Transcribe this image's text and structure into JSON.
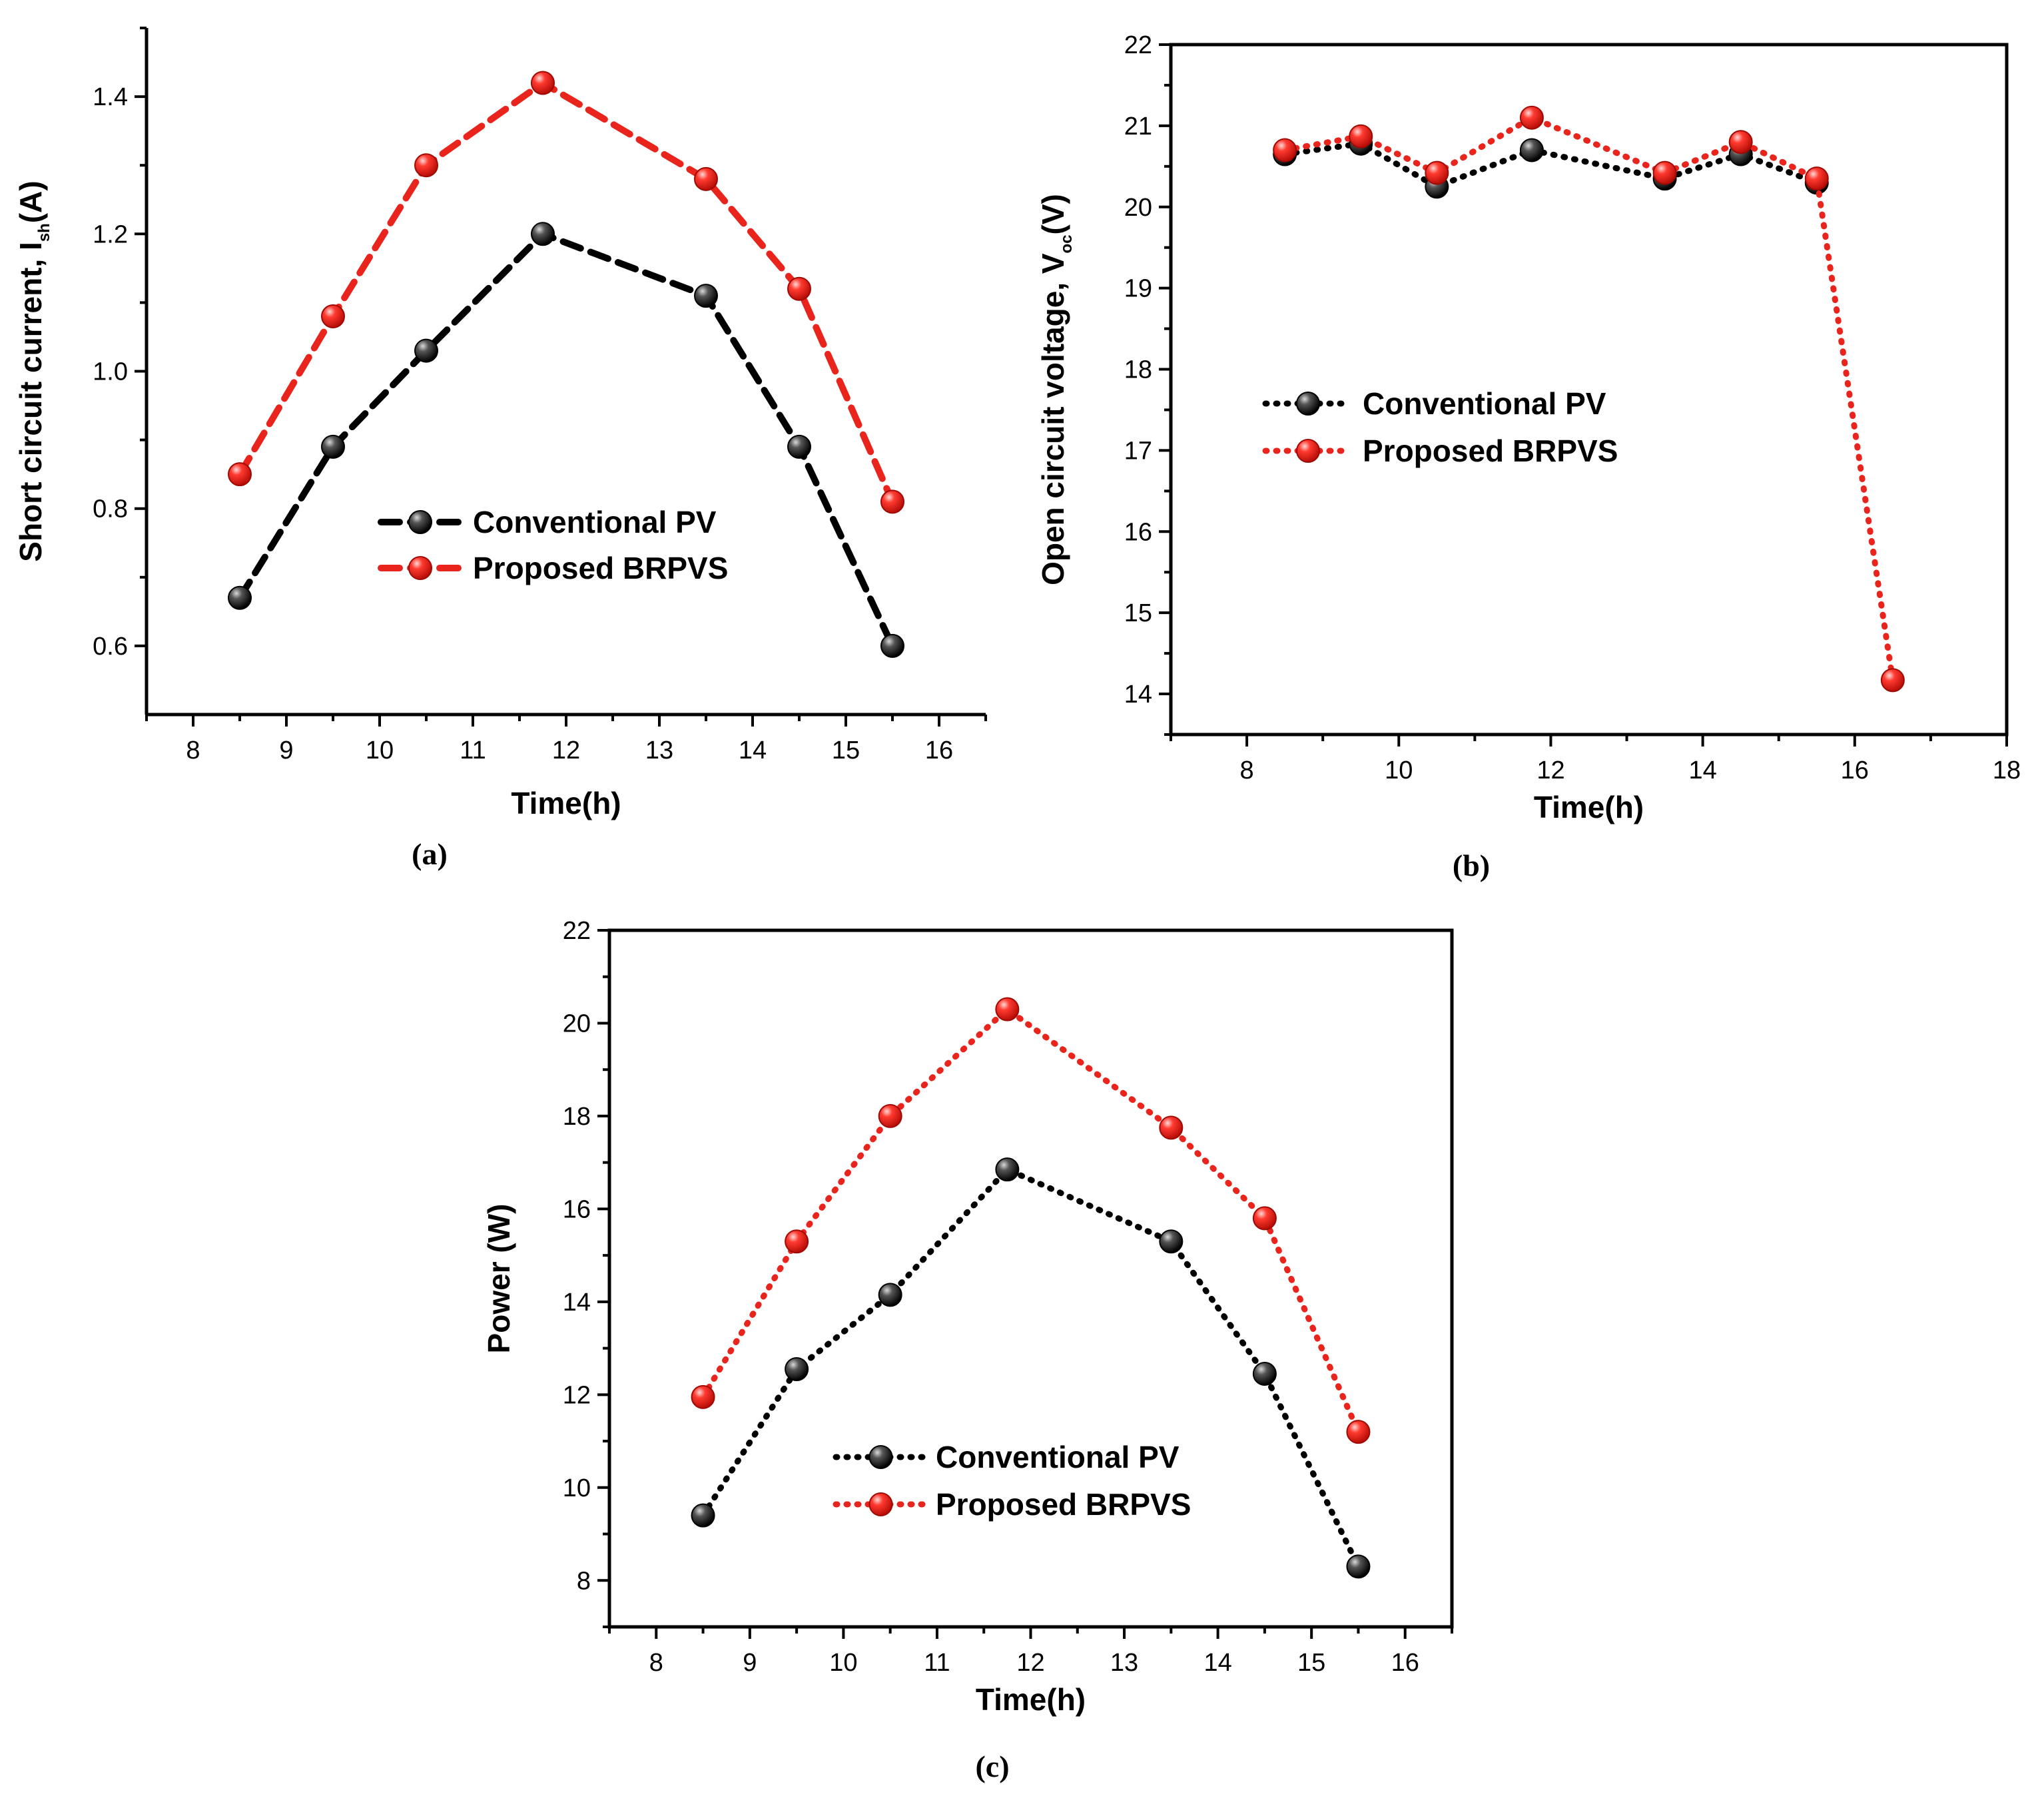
{
  "chart_data": [
    {
      "type": "line",
      "panel": "(a)",
      "title": "",
      "xlabel": "Time(h)",
      "ylabel": "Short circuit current, I",
      "ylabel_sub": "sh",
      "ylabel_unit": "(A)",
      "xlim": [
        7.5,
        16.5
      ],
      "ylim": [
        0.5,
        1.5
      ],
      "xticks": [
        8,
        9,
        10,
        11,
        12,
        13,
        14,
        15,
        16
      ],
      "yticks": [
        0.6,
        0.8,
        1.0,
        1.2,
        1.4
      ],
      "ytick_labels": [
        "0.6",
        "0.8",
        "1.0",
        "1.2",
        "1.4"
      ],
      "legend_position": "center",
      "series": [
        {
          "name": "Conventional PV",
          "color": "#000000",
          "dash": "dashed",
          "x": [
            8.5,
            9.5,
            10.5,
            11.75,
            13.5,
            14.5,
            15.5
          ],
          "y": [
            0.67,
            0.89,
            1.03,
            1.2,
            1.11,
            0.89,
            0.6
          ]
        },
        {
          "name": "Proposed BRPVS",
          "color": "#e8241c",
          "dash": "dashed",
          "x": [
            8.5,
            9.5,
            10.5,
            11.75,
            13.5,
            14.5,
            15.5
          ],
          "y": [
            0.85,
            1.08,
            1.3,
            1.42,
            1.28,
            1.12,
            0.81
          ]
        }
      ]
    },
    {
      "type": "line",
      "panel": "(b)",
      "title": "",
      "xlabel": "Time(h)",
      "ylabel": "Open circuit voltage, V",
      "ylabel_sub": "oc",
      "ylabel_unit": "(V)",
      "xlim": [
        7,
        18
      ],
      "ylim": [
        13.5,
        22
      ],
      "xticks": [
        8,
        10,
        12,
        14,
        16,
        18
      ],
      "yticks": [
        14,
        15,
        16,
        17,
        18,
        19,
        20,
        21,
        22
      ],
      "ytick_labels": [
        "14",
        "15",
        "16",
        "17",
        "18",
        "19",
        "20",
        "21",
        "22"
      ],
      "legend_position": "center-left",
      "series": [
        {
          "name": "Conventional PV",
          "color": "#000000",
          "dash": "dotted",
          "x": [
            8.5,
            9.5,
            10.5,
            11.75,
            13.5,
            14.5,
            15.5
          ],
          "y": [
            20.65,
            20.78,
            20.25,
            20.7,
            20.35,
            20.65,
            20.3
          ]
        },
        {
          "name": "Proposed BRPVS",
          "color": "#e8241c",
          "dash": "dotted",
          "x": [
            8.5,
            9.5,
            10.5,
            11.75,
            13.5,
            14.5,
            15.5,
            16.5
          ],
          "y": [
            20.7,
            20.87,
            20.42,
            21.1,
            20.42,
            20.8,
            20.35,
            14.17
          ]
        }
      ]
    },
    {
      "type": "line",
      "panel": "(c)",
      "title": "",
      "xlabel": "Time(h)",
      "ylabel": "Power (W)",
      "ylabel_sub": "",
      "ylabel_unit": "",
      "xlim": [
        7.5,
        16.5
      ],
      "ylim": [
        7,
        22
      ],
      "xticks": [
        8,
        9,
        10,
        11,
        12,
        13,
        14,
        15,
        16
      ],
      "yticks": [
        8,
        10,
        12,
        14,
        16,
        18,
        20,
        22
      ],
      "ytick_labels": [
        "8",
        "10",
        "12",
        "14",
        "16",
        "18",
        "20",
        "22"
      ],
      "legend_position": "bottom-center",
      "series": [
        {
          "name": "Conventional PV",
          "color": "#000000",
          "dash": "dotted",
          "x": [
            8.5,
            9.5,
            10.5,
            11.75,
            13.5,
            14.5,
            15.5
          ],
          "y": [
            9.4,
            12.55,
            14.15,
            16.85,
            15.3,
            12.45,
            8.3
          ]
        },
        {
          "name": "Proposed BRPVS",
          "color": "#e8241c",
          "dash": "dotted",
          "x": [
            8.5,
            9.5,
            10.5,
            11.75,
            13.5,
            14.5,
            15.5
          ],
          "y": [
            11.95,
            15.3,
            18.0,
            20.3,
            17.75,
            15.8,
            11.2
          ]
        }
      ]
    }
  ]
}
